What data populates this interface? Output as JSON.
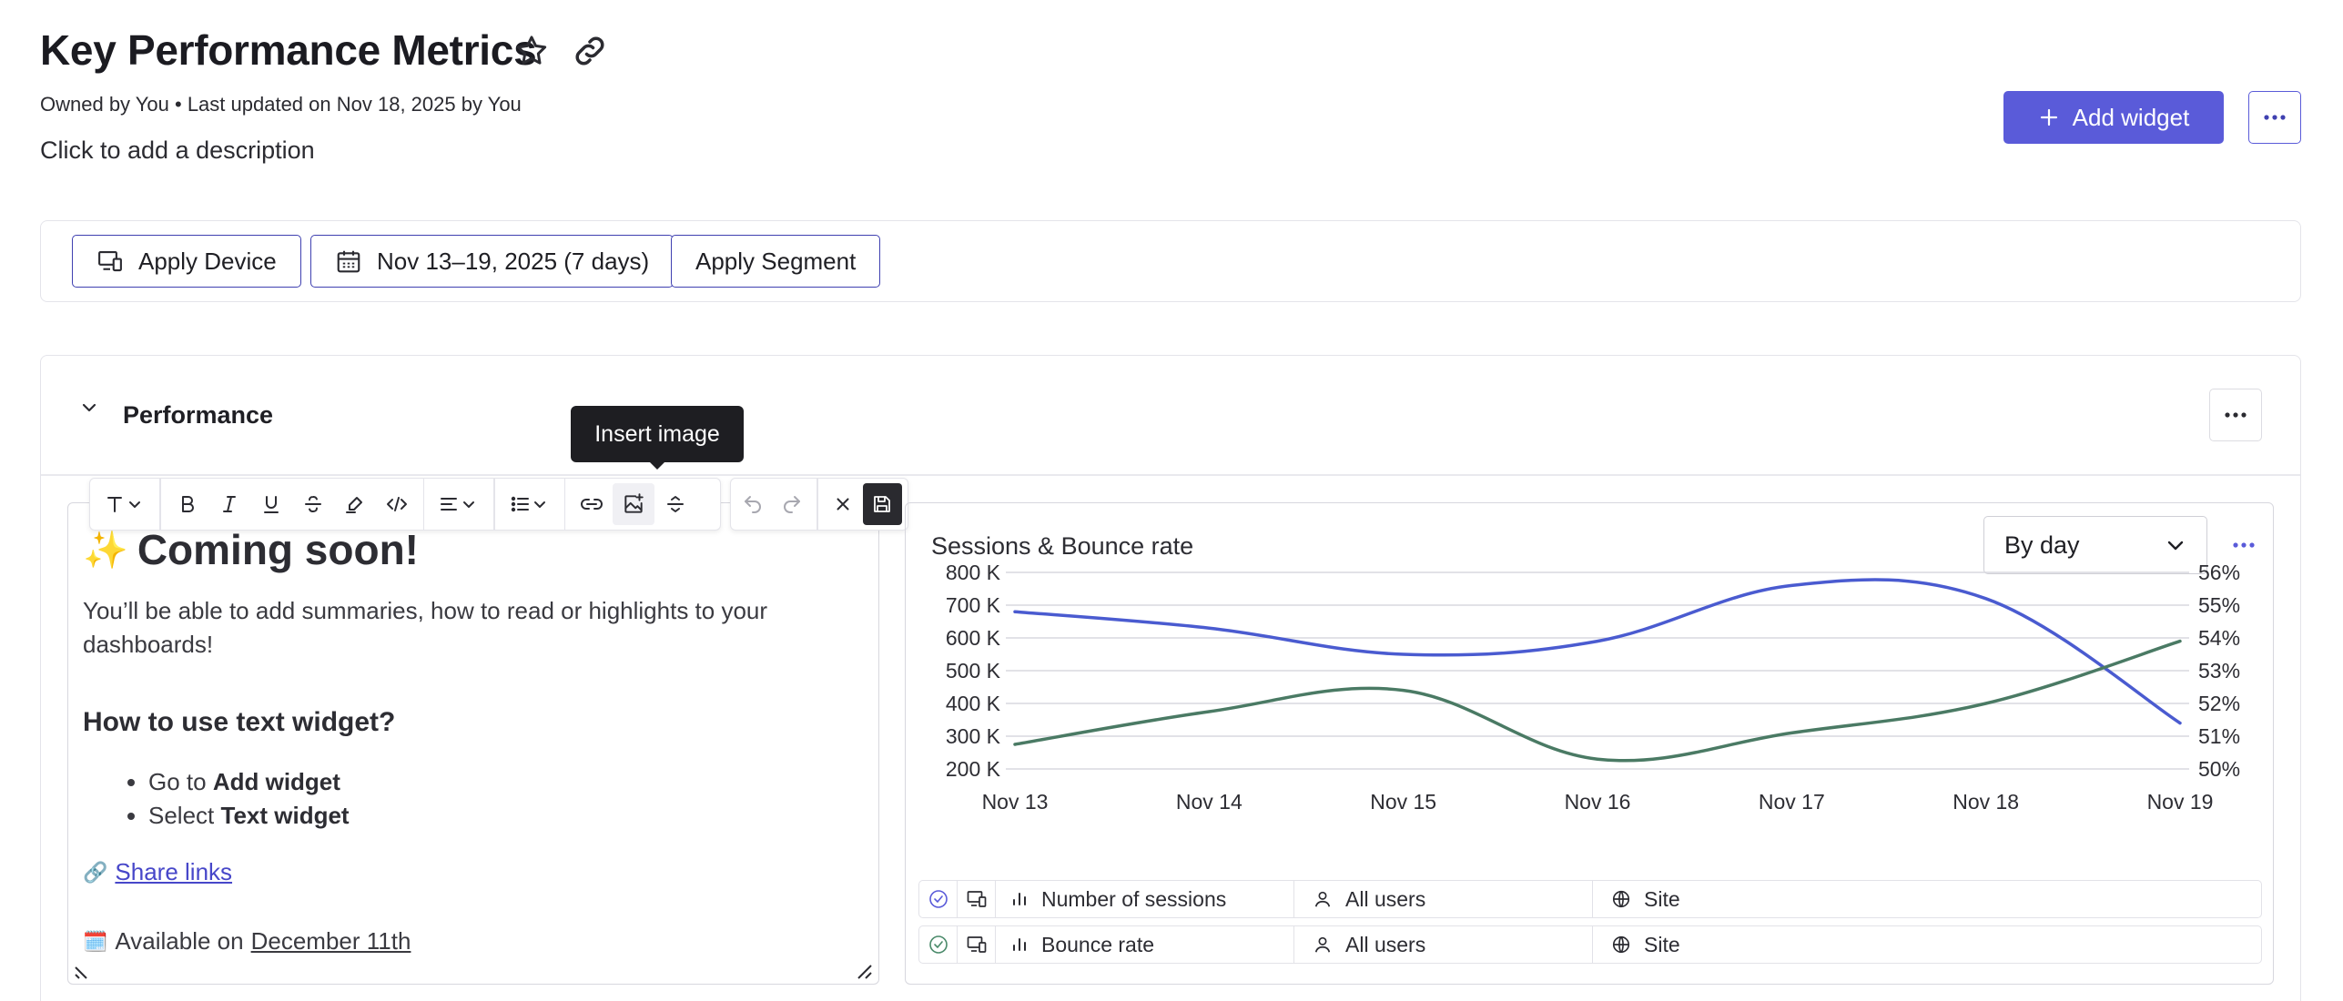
{
  "header": {
    "title": "Key Performance Metrics",
    "meta": "Owned by You • Last updated on Nov 18, 2025 by You",
    "description_placeholder": "Click to add a description",
    "add_widget_label": "Add widget"
  },
  "filters": {
    "device_label": "Apply Device",
    "date_label": "Nov 13–19, 2025 (7 days)",
    "segment_label": "Apply Segment"
  },
  "section": {
    "title": "Performance"
  },
  "tooltip": {
    "text": "Insert image"
  },
  "text_widget": {
    "heading_emoji": "✨",
    "heading": "Coming soon!",
    "paragraph": "You’ll be able to add summaries, how to read or highlights to your dashboards!",
    "subheading": "How to use text widget?",
    "list": [
      {
        "prefix": "Go to ",
        "bold": "Add widget"
      },
      {
        "prefix": "Select ",
        "bold": "Text widget"
      }
    ],
    "link_emoji": "🔗",
    "link_text": "Share links",
    "date_emoji": "🗓️",
    "date_prefix": "Available on",
    "date_text": "December 11th"
  },
  "chart_widget": {
    "title": "Sessions & Bounce rate",
    "group_by": "By day",
    "legend": [
      {
        "metric": "Number of sessions",
        "segment": "All users",
        "scope": "Site"
      },
      {
        "metric": "Bounce rate",
        "segment": "All users",
        "scope": "Site"
      }
    ]
  },
  "colors": {
    "accent": "#5a5bd9",
    "sessions_line": "#4a5bd0",
    "bounce_line": "#4a7a64"
  },
  "chart_data": {
    "type": "line",
    "title": "Sessions & Bounce rate",
    "categories": [
      "Nov 13",
      "Nov 14",
      "Nov 15",
      "Nov 16",
      "Nov 17",
      "Nov 18",
      "Nov 19"
    ],
    "y_left_ticks": [
      "200 K",
      "300 K",
      "400 K",
      "500 K",
      "600 K",
      "700 K",
      "800 K"
    ],
    "y_right_ticks": [
      "50%",
      "51%",
      "52%",
      "53%",
      "54%",
      "55%",
      "56%"
    ],
    "ylim_left": [
      200000,
      800000
    ],
    "ylim_right": [
      50,
      56
    ],
    "grid": true,
    "series": [
      {
        "name": "Number of sessions",
        "axis": "left",
        "values": [
          680000,
          630000,
          550000,
          590000,
          760000,
          720000,
          340000
        ]
      },
      {
        "name": "Bounce rate",
        "axis": "right",
        "values": [
          50.75,
          51.75,
          52.4,
          50.3,
          51.1,
          52.0,
          53.9
        ]
      }
    ]
  }
}
